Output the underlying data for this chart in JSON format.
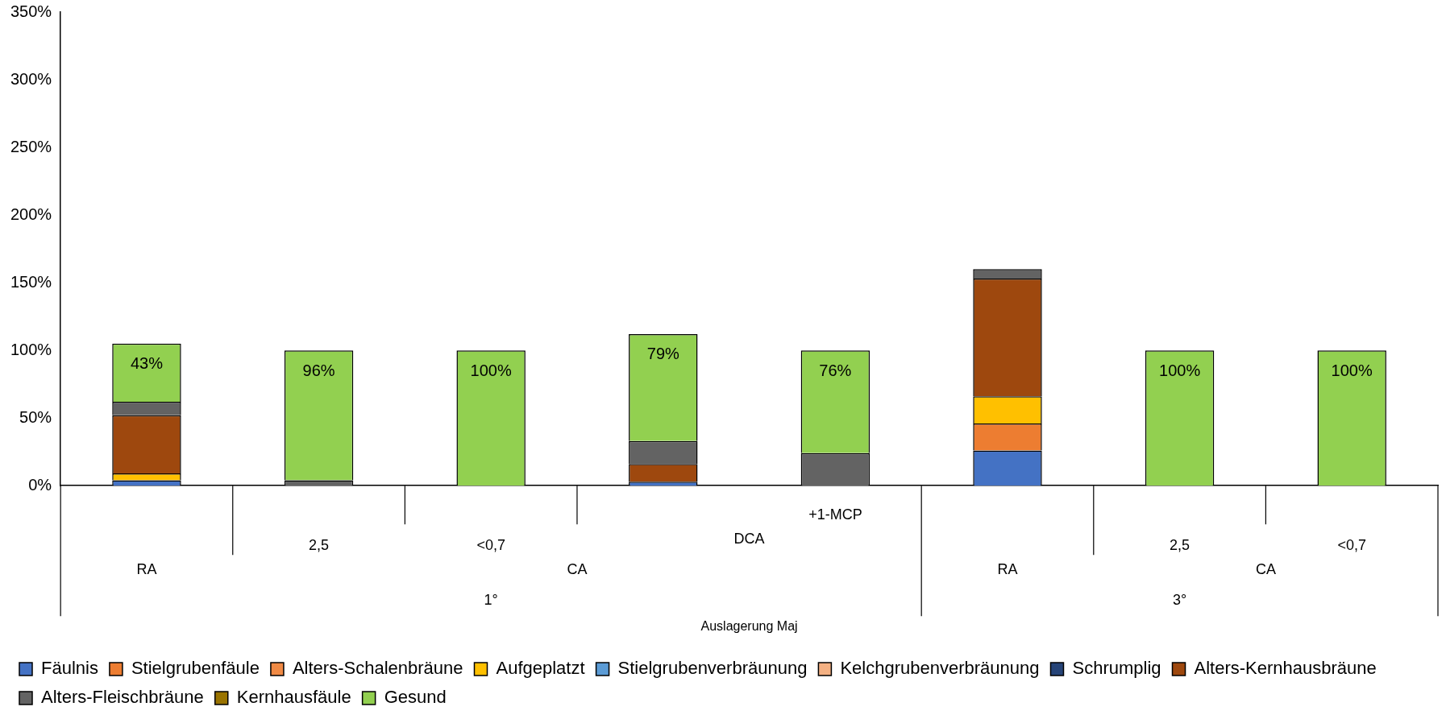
{
  "chart_data": {
    "type": "bar",
    "stacked": true,
    "legend": "bottom",
    "categories": [
      null,
      "2,5",
      "<0,7",
      null,
      "+1-MCP",
      null,
      "2,5",
      "<0,7"
    ],
    "annotations": [
      "DCA",
      "RA",
      "CA",
      "RA",
      "CA",
      "1°",
      "3°",
      "Auslagerung Maj"
    ],
    "ylim": [
      0,
      350
    ],
    "yticks": [
      {
        "value": 0,
        "label": "0%"
      },
      {
        "value": 50,
        "label": "50%"
      },
      {
        "value": 100,
        "label": "100%"
      },
      {
        "value": 150,
        "label": "150%"
      },
      {
        "value": 200,
        "label": "200%"
      },
      {
        "value": 250,
        "label": "250%"
      },
      {
        "value": 300,
        "label": "300%"
      },
      {
        "value": 350,
        "label": "350%"
      }
    ],
    "series": [
      {
        "name": "Fäulnis",
        "color": "#4472c4",
        "values": [
          4,
          null,
          null,
          3,
          null,
          26,
          null,
          null
        ]
      },
      {
        "name": "Stielgrubenfäule",
        "color": "#ed7d31",
        "values": [
          null,
          null,
          null,
          null,
          null,
          20,
          null,
          null
        ]
      },
      {
        "name": "Alters-Schalenbräune",
        "color": "#f08a45",
        "values": [
          null,
          null,
          null,
          null,
          null,
          null,
          null,
          null
        ]
      },
      {
        "name": "Aufgeplatzt",
        "color": "#ffc000",
        "values": [
          5,
          null,
          null,
          null,
          null,
          20,
          null,
          null
        ]
      },
      {
        "name": "Stielgrubenverbräunung",
        "color": "#5b9bd5",
        "values": [
          null,
          null,
          null,
          null,
          null,
          null,
          null,
          null
        ]
      },
      {
        "name": "Kelchgrubenverbräunung",
        "color": "#f4b183",
        "values": [
          null,
          null,
          null,
          null,
          null,
          null,
          null,
          null
        ]
      },
      {
        "name": "Schrumplig",
        "color": "#264478",
        "values": [
          null,
          null,
          null,
          null,
          null,
          null,
          null,
          null
        ]
      },
      {
        "name": "Alters-Kernhausbräune",
        "color": "#9e480e",
        "values": [
          43,
          null,
          null,
          13,
          null,
          87,
          null,
          null
        ]
      },
      {
        "name": "Alters-Fleischbräune",
        "color": "#636363",
        "values": [
          10,
          4,
          null,
          17,
          24,
          7,
          null,
          null
        ]
      },
      {
        "name": "Kernhausfäule",
        "color": "#997300",
        "values": [
          null,
          null,
          null,
          null,
          null,
          null,
          null,
          null
        ]
      },
      {
        "name": "Gesund",
        "color": "#92d050",
        "values": [
          43,
          96,
          100,
          79,
          76,
          null,
          100,
          100
        ],
        "value_labels": [
          "43%",
          "96%",
          "100%",
          "79%",
          "76%",
          null,
          "100%",
          "100%"
        ]
      }
    ]
  }
}
